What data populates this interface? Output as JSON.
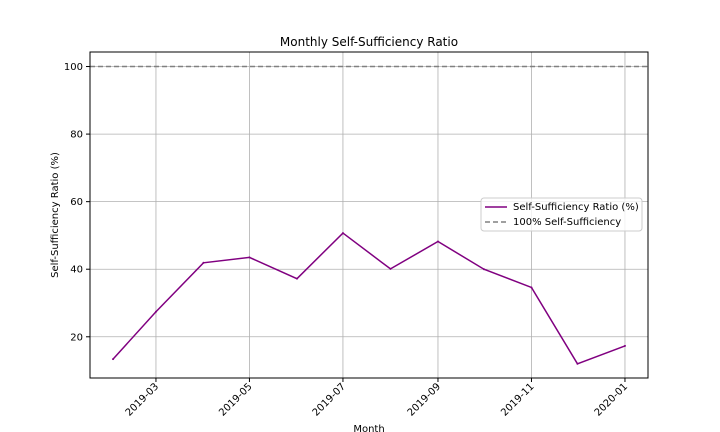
{
  "chart_data": {
    "type": "line",
    "title": "Monthly Self-Sufficiency Ratio",
    "xlabel": "Month",
    "ylabel": "Self-Sufficiency Ratio (%)",
    "x": [
      "2019-02-01",
      "2019-03-01",
      "2019-04-01",
      "2019-05-01",
      "2019-06-01",
      "2019-07-01",
      "2019-08-01",
      "2019-09-01",
      "2019-10-01",
      "2019-11-01",
      "2019-12-01",
      "2020-01-01"
    ],
    "x_ticks": [
      "2019-03",
      "2019-05",
      "2019-07",
      "2019-09",
      "2019-11",
      "2020-01"
    ],
    "y_ticks": [
      20,
      40,
      60,
      80,
      100
    ],
    "ylim": [
      7.8,
      104.3
    ],
    "grid": true,
    "legend_position": "center-right",
    "series": [
      {
        "name": "Self-Sufficiency Ratio (%)",
        "color": "#800080",
        "style": "solid",
        "values": [
          13.4,
          27.4,
          41.9,
          43.5,
          37.2,
          50.7,
          40.1,
          48.2,
          40.0,
          34.6,
          12.0,
          17.3
        ]
      }
    ],
    "reference_line": {
      "name": "100% Self-Sufficiency",
      "value": 100,
      "color": "#808080",
      "style": "dashed"
    }
  }
}
